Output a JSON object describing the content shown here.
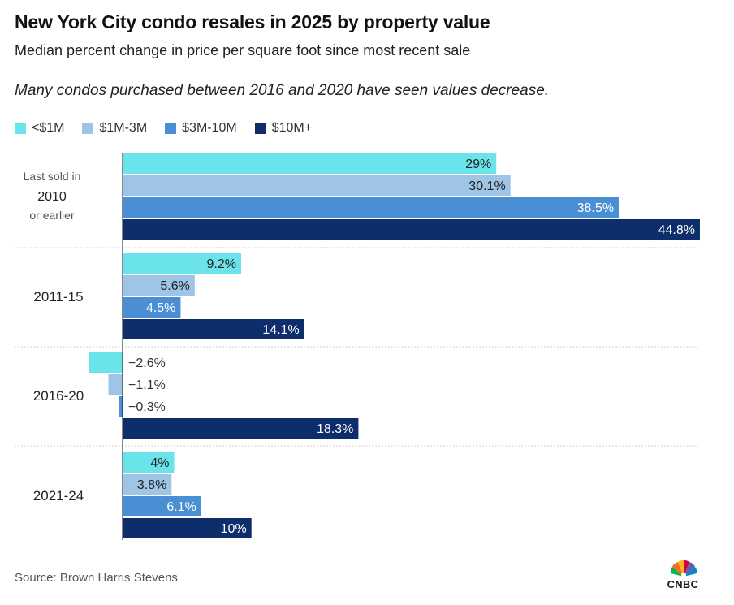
{
  "title": "New York City condo resales in 2025 by property value",
  "subtitle": "Median percent change in price per square foot since most recent sale",
  "note": "Many condos purchased between 2016 and 2020 have seen values decrease.",
  "source": "Source: Brown Harris Stevens",
  "logo": {
    "text": "CNBC",
    "icon": "peacock-icon"
  },
  "colors": {
    "lt1m": "#6ae3eb",
    "m1to3": "#9ec4e6",
    "m3to10": "#4a8fd4",
    "m10plus": "#0d2d6b"
  },
  "chart_data": {
    "type": "bar",
    "orientation": "horizontal",
    "categories": [
      {
        "label": "Last sold in 2010 or earlier",
        "lines": [
          "Last sold in",
          "2010",
          "or earlier"
        ]
      },
      {
        "label": "2011-15",
        "lines": [
          "2011-15"
        ]
      },
      {
        "label": "2016-20",
        "lines": [
          "2016-20"
        ]
      },
      {
        "label": "2021-24",
        "lines": [
          "2021-24"
        ]
      }
    ],
    "series": [
      {
        "name": "<$1M",
        "color": "#6ae3eb",
        "values": [
          29,
          9.2,
          -2.6,
          4
        ],
        "labels": [
          "29%",
          "9.2%",
          "−2.6%",
          "4%"
        ]
      },
      {
        "name": "$1M-3M",
        "color": "#9ec4e6",
        "values": [
          30.1,
          5.6,
          -1.1,
          3.8
        ],
        "labels": [
          "30.1%",
          "5.6%",
          "−1.1%",
          "3.8%"
        ]
      },
      {
        "name": "$3M-10M",
        "color": "#4a8fd4",
        "values": [
          38.5,
          4.5,
          -0.3,
          6.1
        ],
        "labels": [
          "38.5%",
          "4.5%",
          "−0.3%",
          "6.1%"
        ]
      },
      {
        "name": "$10M+",
        "color": "#0d2d6b",
        "values": [
          44.8,
          14.1,
          18.3,
          10
        ],
        "labels": [
          "44.8%",
          "14.1%",
          "18.3%",
          "10%"
        ]
      }
    ],
    "xlim": [
      -2.6,
      44.8
    ],
    "xlabel": "",
    "ylabel": "",
    "legend": "top-left"
  }
}
